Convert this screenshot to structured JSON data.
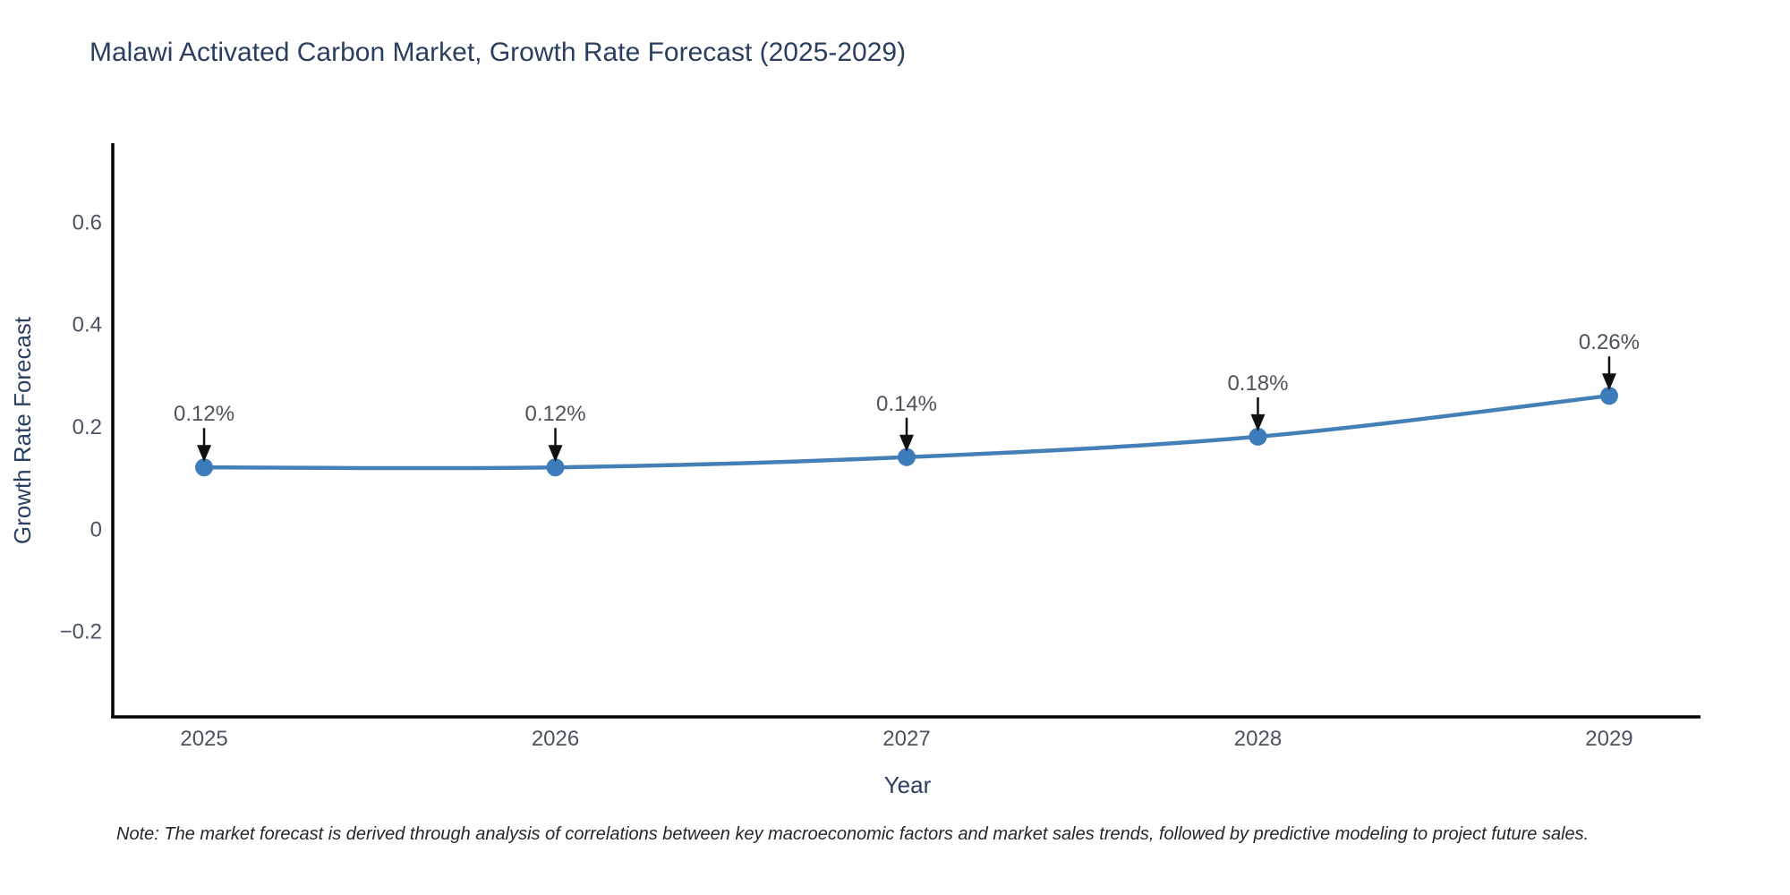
{
  "note": "Note: The market forecast is derived through analysis of correlations between key macroeconomic factors and market sales trends, followed by predictive modeling to project future sales.",
  "chart_data": {
    "type": "line",
    "title": "Malawi Activated Carbon Market, Growth Rate Forecast (2025-2029)",
    "xlabel": "Year",
    "ylabel": "Growth Rate Forecast",
    "x": [
      2025,
      2026,
      2027,
      2028,
      2029
    ],
    "series": [
      {
        "name": "Growth Rate Forecast",
        "values": [
          0.12,
          0.12,
          0.14,
          0.18,
          0.26
        ],
        "point_labels": [
          "0.12%",
          "0.12%",
          "0.14%",
          "0.18%",
          "0.26%"
        ]
      }
    ],
    "x_tick_labels": [
      "2025",
      "2026",
      "2027",
      "2028",
      "2029"
    ],
    "y_ticks": [
      {
        "value": 0.6,
        "label": "0.6"
      },
      {
        "value": 0.4,
        "label": "0.4"
      },
      {
        "value": 0.2,
        "label": "0.2"
      },
      {
        "value": 0.0,
        "label": "0"
      },
      {
        "value": -0.2,
        "label": "−0.2"
      }
    ],
    "xlim": [
      2024.74,
      2029.26
    ],
    "ylim": [
      -0.368,
      0.754
    ],
    "grid": false,
    "legend_position": "none",
    "line_shape": "spline",
    "annotations_arrow": "down",
    "colors": {
      "line": "#4480b5",
      "marker": "#3c7cba",
      "axis": "#000000",
      "title": "#2a3f5f",
      "tick": "#4a5364",
      "annotation_text": "#4d525c",
      "arrow": "#111111",
      "background": "#ffffff"
    }
  }
}
